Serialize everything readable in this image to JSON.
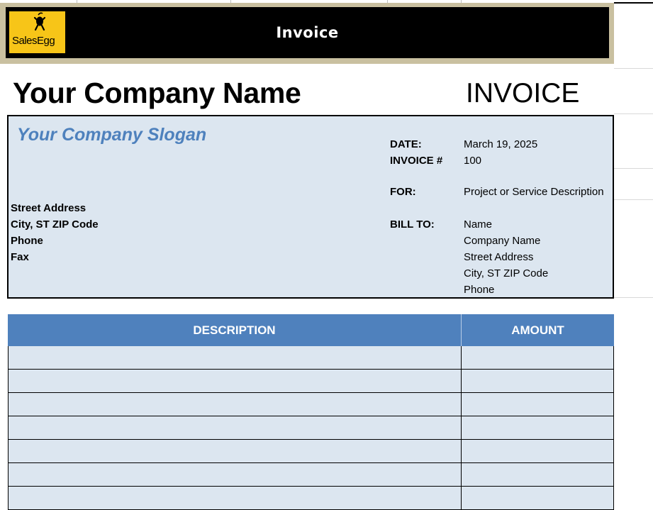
{
  "banner": {
    "title": "Invoice",
    "logo_text": "SalesEgg",
    "logo_icon": "egg-figure-icon",
    "brand_color": "#f7c518"
  },
  "heading": {
    "company_name": "Your Company Name",
    "document_type": "INVOICE"
  },
  "info": {
    "slogan": "Your Company Slogan",
    "address_lines": [
      "Street Address",
      "City, ST  ZIP Code",
      "Phone",
      "Fax"
    ],
    "fields": {
      "date_label": "DATE:",
      "date_value": "March 19, 2025",
      "invoice_label": "INVOICE #",
      "invoice_value": "100",
      "for_label": "FOR:",
      "for_value": "Project or Service Description",
      "bill_to_label": "BILL TO:",
      "bill_to_lines": [
        "Name",
        "Company Name",
        "Street Address",
        "City, ST  ZIP Code",
        "Phone"
      ]
    }
  },
  "table": {
    "columns": [
      "DESCRIPTION",
      "AMOUNT"
    ],
    "rows": [
      {
        "description": "",
        "amount": ""
      },
      {
        "description": "",
        "amount": ""
      },
      {
        "description": "",
        "amount": ""
      },
      {
        "description": "",
        "amount": ""
      },
      {
        "description": "",
        "amount": ""
      },
      {
        "description": "",
        "amount": ""
      },
      {
        "description": "",
        "amount": ""
      }
    ]
  },
  "colors": {
    "header_bg": "#000000",
    "frame": "#c9c0a0",
    "panel_bg": "#dce6f0",
    "accent": "#4f81bd",
    "slogan": "#4e81bd"
  }
}
